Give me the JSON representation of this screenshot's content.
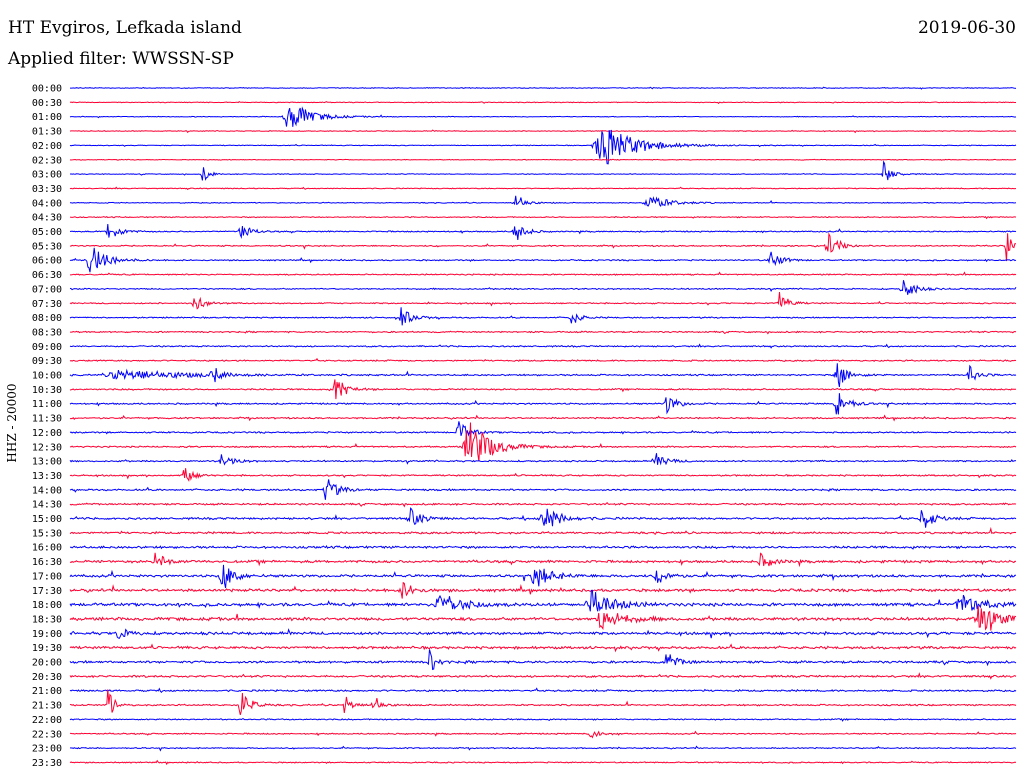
{
  "header": {
    "station": "HT Evgiros, Lefkada island",
    "date": "2019-06-30",
    "filter": "Applied filter: WWSSN-SP"
  },
  "chart_data": {
    "type": "line",
    "ylabel": "HHZ - 20000",
    "row_labels": [
      "00:00",
      "00:30",
      "01:00",
      "01:30",
      "02:00",
      "02:30",
      "03:00",
      "03:30",
      "04:00",
      "04:30",
      "05:00",
      "05:30",
      "06:00",
      "06:30",
      "07:00",
      "07:30",
      "08:00",
      "08:30",
      "09:00",
      "09:30",
      "10:00",
      "10:30",
      "11:00",
      "11:30",
      "12:00",
      "12:30",
      "13:00",
      "13:30",
      "14:00",
      "14:30",
      "15:00",
      "15:30",
      "16:00",
      "16:30",
      "17:00",
      "17:30",
      "18:00",
      "18:30",
      "19:00",
      "19:30",
      "20:00",
      "20:30",
      "21:00",
      "21:30",
      "22:00",
      "22:30",
      "23:00",
      "23:30"
    ],
    "colors": [
      "#0000ff",
      "#ff0033"
    ],
    "rows_noise": [
      0.3,
      0.3,
      0.3,
      0.3,
      0.3,
      0.3,
      0.3,
      0.35,
      0.35,
      0.4,
      0.5,
      0.5,
      0.5,
      0.5,
      0.5,
      0.5,
      0.5,
      0.55,
      0.55,
      0.55,
      0.6,
      0.6,
      0.6,
      0.6,
      0.6,
      0.6,
      0.6,
      0.6,
      0.7,
      0.7,
      0.8,
      0.8,
      0.9,
      1.0,
      1.0,
      1.1,
      1.2,
      1.2,
      1.1,
      1.0,
      0.9,
      0.8,
      0.7,
      0.6,
      0.5,
      0.5,
      0.45,
      0.45
    ],
    "events": [
      {
        "row": 2,
        "x": 0.23,
        "amp": 18,
        "w": 0.02
      },
      {
        "row": 4,
        "x": 0.56,
        "amp": 26,
        "w": 0.03
      },
      {
        "row": 6,
        "x": 0.14,
        "amp": 9,
        "w": 0.006
      },
      {
        "row": 6,
        "x": 0.86,
        "amp": 12,
        "w": 0.008
      },
      {
        "row": 8,
        "x": 0.47,
        "amp": 12,
        "w": 0.008
      },
      {
        "row": 8,
        "x": 0.61,
        "amp": 8,
        "w": 0.02
      },
      {
        "row": 10,
        "x": 0.04,
        "amp": 10,
        "w": 0.01
      },
      {
        "row": 10,
        "x": 0.18,
        "amp": 12,
        "w": 0.008
      },
      {
        "row": 10,
        "x": 0.47,
        "amp": 14,
        "w": 0.008
      },
      {
        "row": 11,
        "x": 0.8,
        "amp": 14,
        "w": 0.01
      },
      {
        "row": 11,
        "x": 0.99,
        "amp": 16,
        "w": 0.008
      },
      {
        "row": 12,
        "x": 0.02,
        "amp": 18,
        "w": 0.015
      },
      {
        "row": 12,
        "x": 0.74,
        "amp": 10,
        "w": 0.01
      },
      {
        "row": 14,
        "x": 0.88,
        "amp": 14,
        "w": 0.01
      },
      {
        "row": 15,
        "x": 0.13,
        "amp": 12,
        "w": 0.008
      },
      {
        "row": 15,
        "x": 0.75,
        "amp": 12,
        "w": 0.008
      },
      {
        "row": 16,
        "x": 0.35,
        "amp": 10,
        "w": 0.01
      },
      {
        "row": 16,
        "x": 0.53,
        "amp": 8,
        "w": 0.008
      },
      {
        "row": 20,
        "x": 0.05,
        "amp": 6,
        "w": 0.06
      },
      {
        "row": 20,
        "x": 0.15,
        "amp": 12,
        "w": 0.006
      },
      {
        "row": 20,
        "x": 0.81,
        "amp": 16,
        "w": 0.01
      },
      {
        "row": 20,
        "x": 0.95,
        "amp": 10,
        "w": 0.008
      },
      {
        "row": 21,
        "x": 0.28,
        "amp": 14,
        "w": 0.01
      },
      {
        "row": 22,
        "x": 0.63,
        "amp": 10,
        "w": 0.01
      },
      {
        "row": 22,
        "x": 0.81,
        "amp": 16,
        "w": 0.01
      },
      {
        "row": 24,
        "x": 0.41,
        "amp": 12,
        "w": 0.01
      },
      {
        "row": 25,
        "x": 0.42,
        "amp": 30,
        "w": 0.02
      },
      {
        "row": 26,
        "x": 0.16,
        "amp": 8,
        "w": 0.01
      },
      {
        "row": 26,
        "x": 0.62,
        "amp": 8,
        "w": 0.01
      },
      {
        "row": 27,
        "x": 0.12,
        "amp": 10,
        "w": 0.008
      },
      {
        "row": 28,
        "x": 0.27,
        "amp": 14,
        "w": 0.01
      },
      {
        "row": 30,
        "x": 0.36,
        "amp": 10,
        "w": 0.01
      },
      {
        "row": 30,
        "x": 0.5,
        "amp": 14,
        "w": 0.015
      },
      {
        "row": 30,
        "x": 0.9,
        "amp": 14,
        "w": 0.01
      },
      {
        "row": 33,
        "x": 0.09,
        "amp": 12,
        "w": 0.008
      },
      {
        "row": 33,
        "x": 0.73,
        "amp": 8,
        "w": 0.01
      },
      {
        "row": 34,
        "x": 0.16,
        "amp": 18,
        "w": 0.01
      },
      {
        "row": 34,
        "x": 0.49,
        "amp": 14,
        "w": 0.015
      },
      {
        "row": 34,
        "x": 0.62,
        "amp": 10,
        "w": 0.01
      },
      {
        "row": 35,
        "x": 0.35,
        "amp": 10,
        "w": 0.01
      },
      {
        "row": 36,
        "x": 0.39,
        "amp": 14,
        "w": 0.02
      },
      {
        "row": 36,
        "x": 0.55,
        "amp": 16,
        "w": 0.02
      },
      {
        "row": 36,
        "x": 0.94,
        "amp": 12,
        "w": 0.02
      },
      {
        "row": 37,
        "x": 0.56,
        "amp": 12,
        "w": 0.02
      },
      {
        "row": 37,
        "x": 0.96,
        "amp": 14,
        "w": 0.02
      },
      {
        "row": 38,
        "x": 0.05,
        "amp": 6,
        "w": 0.01
      },
      {
        "row": 40,
        "x": 0.38,
        "amp": 14,
        "w": 0.006
      },
      {
        "row": 40,
        "x": 0.63,
        "amp": 10,
        "w": 0.01
      },
      {
        "row": 43,
        "x": 0.04,
        "amp": 16,
        "w": 0.006
      },
      {
        "row": 43,
        "x": 0.18,
        "amp": 20,
        "w": 0.008
      },
      {
        "row": 43,
        "x": 0.29,
        "amp": 14,
        "w": 0.006
      },
      {
        "row": 43,
        "x": 0.32,
        "amp": 14,
        "w": 0.006
      },
      {
        "row": 45,
        "x": 0.55,
        "amp": 6,
        "w": 0.008
      }
    ]
  }
}
